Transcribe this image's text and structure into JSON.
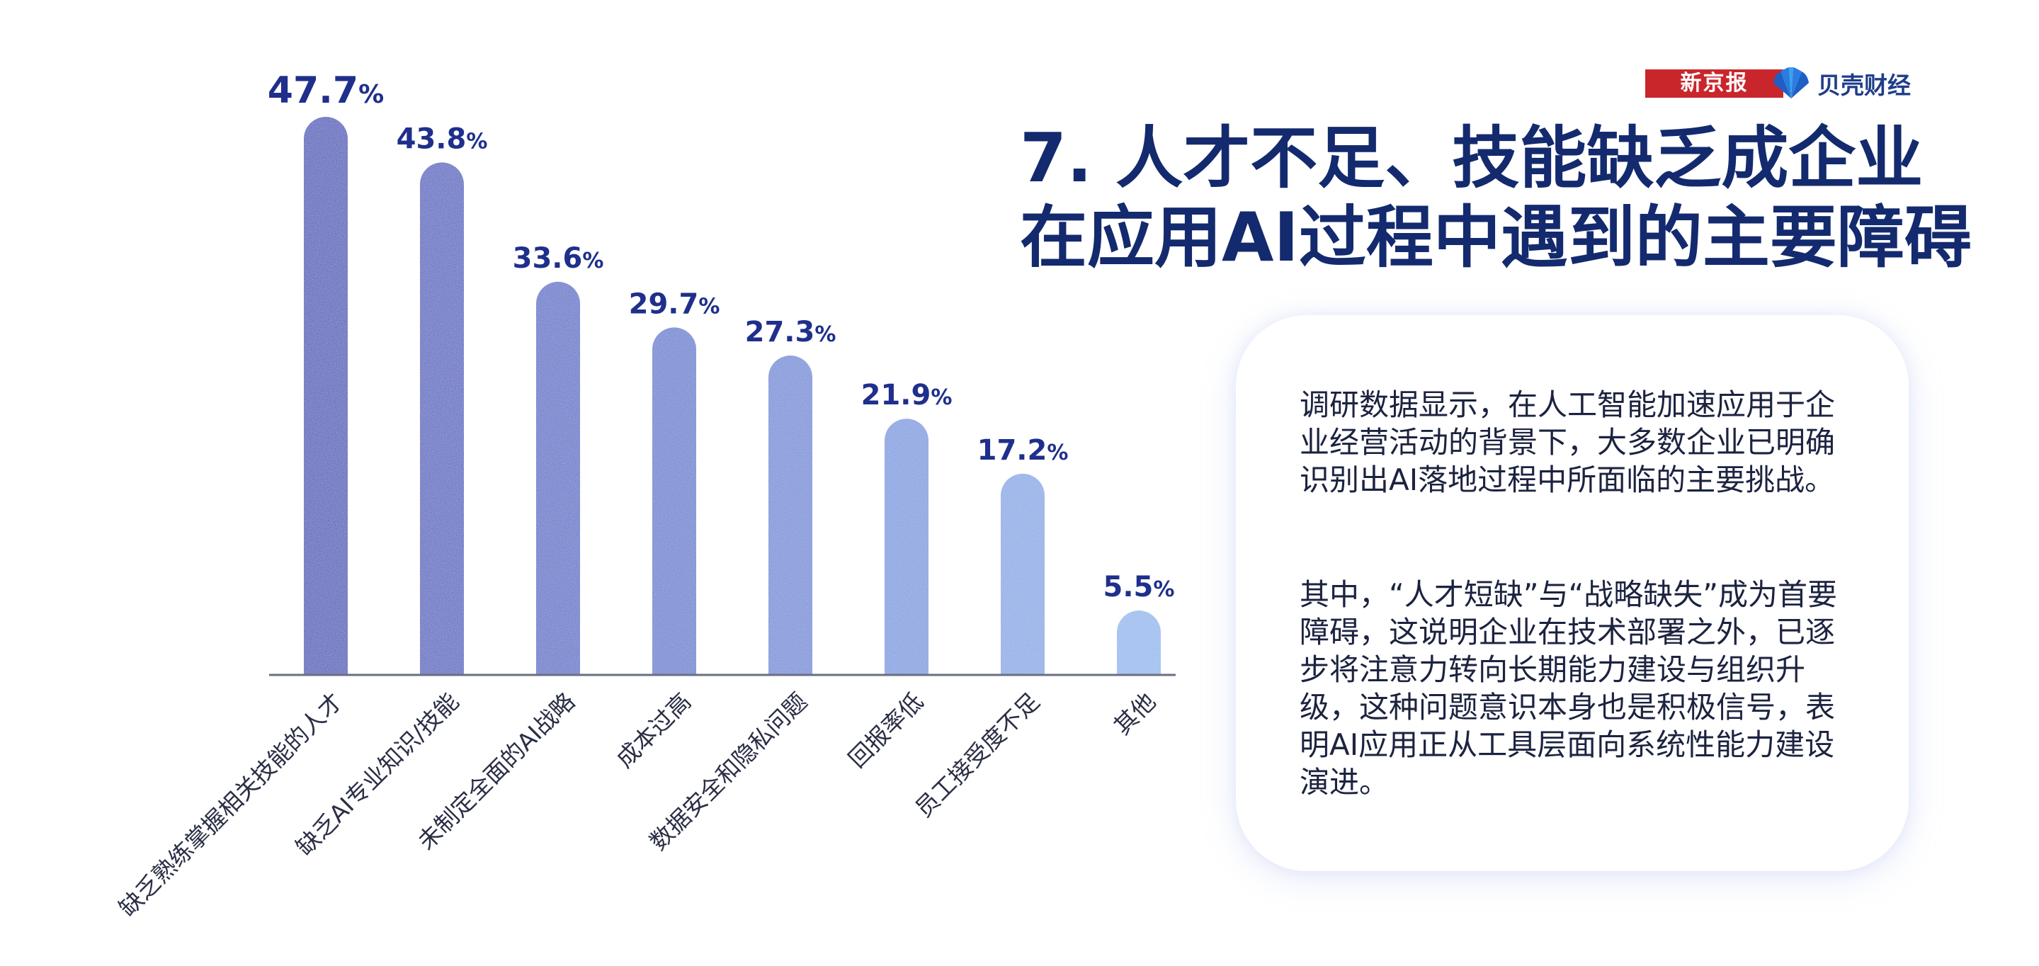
{
  "brand": {
    "newspaper": "新京报",
    "finance": "贝壳财经"
  },
  "title": {
    "line1": "7. 人才不足、技能缺乏成企业",
    "line2": "在应用AI过程中遇到的主要障碍"
  },
  "card": {
    "paragraph1": "调研数据显示，在人工智能加速应用于企业经营活动的背景下，大多数企业已明确识别出AI落地过程中所面临的主要挑战。",
    "paragraph2": "其中，“人才短缺”与“战略缺失”成为首要障碍，这说明企业在技术部署之外，已逐步将注意力转向长期能力建设与组织升级，这种问题意识本身也是积极信号，表明AI应用正从工具层面向系统性能力建设演进。"
  },
  "colors": {
    "title": "#142a6e",
    "value_label": "#1f2f8c",
    "bar_dark": "#3848b8",
    "bar_light": "#8fb6ee",
    "brand_red": "#c9262c"
  },
  "chart_data": {
    "type": "bar",
    "title": "",
    "xlabel": "",
    "ylabel": "",
    "unit": "%",
    "ylim": [
      0,
      47.7
    ],
    "grid": false,
    "categories": [
      "缺乏熟练掌握相关技能的人才",
      "缺乏AI专业知识/技能",
      "未制定全面的AI战略",
      "成本过高",
      "数据安全和隐私问题",
      "回报率低",
      "员工接受度不足",
      "其他"
    ],
    "values": [
      47.7,
      43.8,
      33.6,
      29.7,
      27.3,
      21.9,
      17.2,
      5.5
    ],
    "value_labels": [
      "47.7",
      "43.8",
      "33.6",
      "29.7",
      "27.3",
      "21.9",
      "17.2",
      "5.5"
    ]
  }
}
